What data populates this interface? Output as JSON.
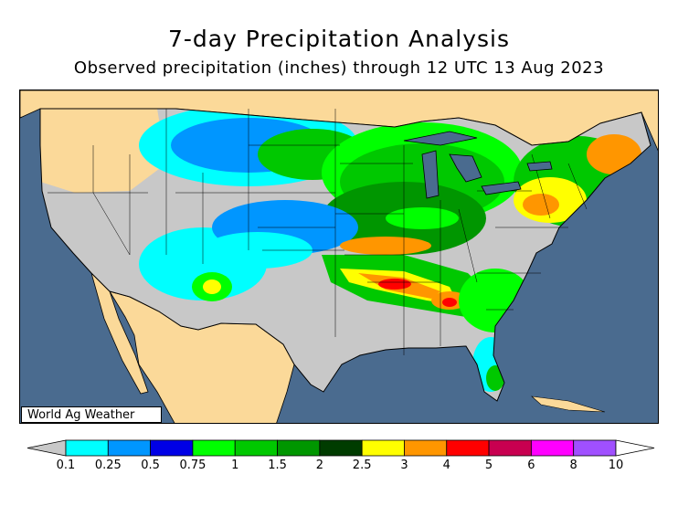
{
  "title": "7-day Precipitation Analysis",
  "subtitle": "Observed precipitation (inches) through 12 UTC 13 Aug 2023",
  "credit": "World Ag Weather",
  "colors": {
    "ocean": "#4a6b8f",
    "land_outside": "#fbd999",
    "no_precip": "#c8c8c8"
  },
  "legend": {
    "bins": [
      {
        "color": "#c8c8c8"
      },
      {
        "color": "#00ffff"
      },
      {
        "color": "#0096ff"
      },
      {
        "color": "#0000e6"
      },
      {
        "color": "#00ff00"
      },
      {
        "color": "#00c800"
      },
      {
        "color": "#009600"
      },
      {
        "color": "#003c00"
      },
      {
        "color": "#ffff00"
      },
      {
        "color": "#ff9600"
      },
      {
        "color": "#ff0000"
      },
      {
        "color": "#c80050"
      },
      {
        "color": "#ff00ff"
      },
      {
        "color": "#a050ff"
      },
      {
        "color": "#ffffff"
      }
    ],
    "labels": [
      "0.1",
      "0.25",
      "0.5",
      "0.75",
      "1",
      "1.5",
      "2",
      "2.5",
      "3",
      "4",
      "5",
      "6",
      "8",
      "10"
    ]
  }
}
